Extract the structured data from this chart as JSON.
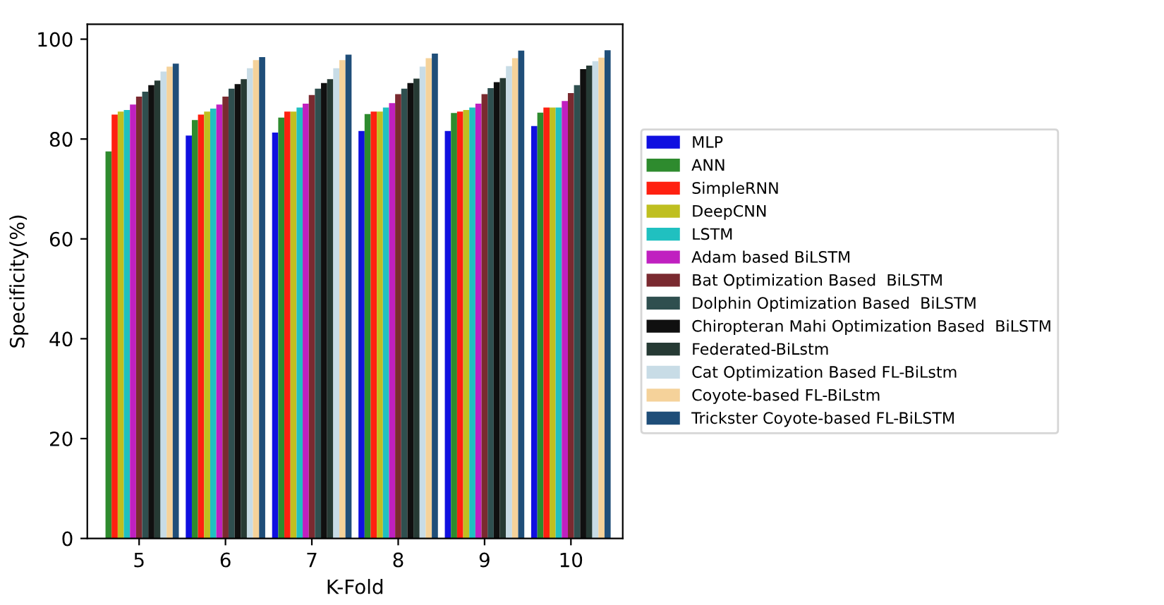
{
  "chart_data": {
    "type": "bar",
    "xlabel": "K-Fold",
    "ylabel": "Specificity(%)",
    "categories": [
      "5",
      "6",
      "7",
      "8",
      "9",
      "10"
    ],
    "ylim": [
      0,
      103
    ],
    "yticks": [
      0,
      20,
      40,
      60,
      80,
      100
    ],
    "grid": false,
    "legend": "right",
    "series": [
      {
        "name": "MLP",
        "color": "#1010e0",
        "values": [
          null,
          80.7,
          81.3,
          81.6,
          81.6,
          82.6
        ]
      },
      {
        "name": "ANN",
        "color": "#2e8b2e",
        "values": [
          77.5,
          83.8,
          84.3,
          85.0,
          85.2,
          85.3
        ]
      },
      {
        "name": "SimpleRNN",
        "color": "#ff2010",
        "values": [
          84.9,
          84.9,
          85.5,
          85.5,
          85.5,
          86.3
        ]
      },
      {
        "name": "DeepCNN",
        "color": "#bfbf20",
        "values": [
          85.5,
          85.5,
          85.5,
          85.5,
          85.8,
          86.3
        ]
      },
      {
        "name": "LSTM",
        "color": "#20c0c0",
        "values": [
          85.8,
          86.1,
          86.3,
          86.3,
          86.3,
          86.3
        ]
      },
      {
        "name": "Adam based BiLSTM",
        "color": "#c020c0",
        "values": [
          86.9,
          86.9,
          87.1,
          87.2,
          87.1,
          87.6
        ]
      },
      {
        "name": "Bat Optimization Based  BiLSTM",
        "color": "#7a2a30",
        "values": [
          88.5,
          88.5,
          88.8,
          89.0,
          89.0,
          89.2
        ]
      },
      {
        "name": "Dolphin Optimization Based  BiLSTM",
        "color": "#2f4f4f",
        "values": [
          89.5,
          90.1,
          90.1,
          90.1,
          90.2,
          90.8
        ]
      },
      {
        "name": "Chiropteran Mahi Optimization Based  BiLSTM",
        "color": "#101010",
        "values": [
          90.8,
          91.0,
          91.2,
          91.2,
          91.4,
          94.0
        ]
      },
      {
        "name": "Federated-BiLstm",
        "color": "#263a34",
        "values": [
          91.7,
          92.0,
          92.0,
          92.1,
          92.2,
          94.7
        ]
      },
      {
        "name": "Cat Optimization Based FL-BiLstm",
        "color": "#c8dce6",
        "values": [
          93.5,
          94.2,
          94.2,
          94.5,
          94.6,
          95.6
        ]
      },
      {
        "name": "Coyote-based FL-BiLstm",
        "color": "#f5d29a",
        "values": [
          94.5,
          95.8,
          95.8,
          96.2,
          96.2,
          96.3
        ]
      },
      {
        "name": "Trickster Coyote-based FL-BiLSTM",
        "color": "#1f4e79",
        "values": [
          95.1,
          96.4,
          96.9,
          97.1,
          97.7,
          97.8
        ]
      }
    ]
  }
}
